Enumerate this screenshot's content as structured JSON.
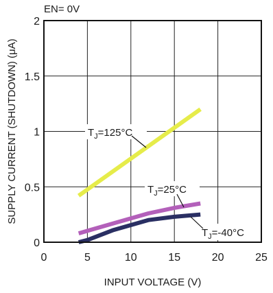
{
  "chart_data": {
    "type": "line",
    "header_label": "EN= 0V",
    "xlabel": "INPUT VOLTAGE (V)",
    "ylabel": "SUPPLY CURRENT (SHUTDOWN) (μA)",
    "xlim": [
      0,
      25
    ],
    "ylim": [
      0,
      2
    ],
    "x_ticks": [
      0,
      5,
      10,
      15,
      20,
      25
    ],
    "y_ticks": [
      0,
      0.5,
      1,
      1.5,
      2
    ],
    "x_tick_labels": [
      "0",
      "5",
      "10",
      "15",
      "20",
      "25"
    ],
    "y_tick_labels": [
      "0",
      "0.5",
      "1",
      "1.5",
      "2"
    ],
    "grid": true,
    "series": [
      {
        "name": "T_J=125°C",
        "label_main": "T",
        "label_sub": "J",
        "label_rest": "=125°C",
        "color": "#e6ec4a",
        "x": [
          4,
          18
        ],
        "y": [
          0.42,
          1.2
        ]
      },
      {
        "name": "T_J=25°C",
        "label_main": "T",
        "label_sub": "J",
        "label_rest": "=25°C",
        "color": "#b360ba",
        "x": [
          4,
          8,
          12,
          15,
          18
        ],
        "y": [
          0.08,
          0.17,
          0.26,
          0.31,
          0.35
        ]
      },
      {
        "name": "T_J=-40°C",
        "label_main": "T",
        "label_sub": "J",
        "label_rest": "=-40°C",
        "color": "#2a2f63",
        "x": [
          4,
          5,
          8,
          12,
          15,
          18
        ],
        "y": [
          0.0,
          0.02,
          0.11,
          0.2,
          0.23,
          0.25
        ]
      }
    ]
  }
}
